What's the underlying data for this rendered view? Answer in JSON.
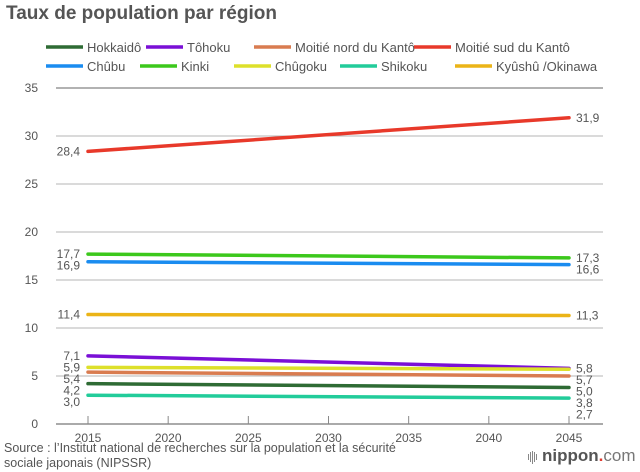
{
  "chart_data": {
    "type": "line",
    "title": "Taux de population par région",
    "xlabel": "",
    "ylabel": "",
    "x": [
      2015,
      2020,
      2025,
      2030,
      2035,
      2040,
      2045
    ],
    "x_tick_labels": [
      "2015",
      "2020",
      "2025",
      "2030",
      "2035",
      "2040",
      "2045"
    ],
    "y_ticks": [
      0,
      5,
      10,
      15,
      20,
      25,
      30,
      35
    ],
    "y_tick_labels": [
      "0",
      "5",
      "10",
      "15",
      "20",
      "25",
      "30",
      "35"
    ],
    "ylim": [
      0,
      35
    ],
    "grid": true,
    "legend_position": "top",
    "series": [
      {
        "name": "Hokkaidô",
        "color": "#2e6b34",
        "start": 4.2,
        "end": 3.8,
        "start_label": "4,2",
        "end_label": "3,8"
      },
      {
        "name": "Tôhoku",
        "color": "#7a0fd6",
        "start": 7.1,
        "end": 5.8,
        "start_label": "7,1",
        "end_label": "5,8"
      },
      {
        "name": "Moitié nord du Kantô",
        "color": "#d97c50",
        "start": 5.4,
        "end": 5.0,
        "start_label": "5,4",
        "end_label": "5,0"
      },
      {
        "name": "Moitié sud du Kantô",
        "color": "#e8392a",
        "start": 28.4,
        "end": 31.9,
        "start_label": "28,4",
        "end_label": "31,9"
      },
      {
        "name": "Chûbu",
        "color": "#1a8cf0",
        "start": 16.9,
        "end": 16.6,
        "start_label": "16,9",
        "end_label": "16,6"
      },
      {
        "name": "Kinki",
        "color": "#3cc81c",
        "start": 17.7,
        "end": 17.3,
        "start_label": "17,7",
        "end_label": "17,3"
      },
      {
        "name": "Chûgoku",
        "color": "#dde02a",
        "start": 5.9,
        "end": 5.7,
        "start_label": "5,9",
        "end_label": "5,7"
      },
      {
        "name": "Shikoku",
        "color": "#22cc9a",
        "start": 3.0,
        "end": 2.7,
        "start_label": "3,0",
        "end_label": "2,7"
      },
      {
        "name": "Kyûshû /Okinawa",
        "color": "#ebb417",
        "start": 11.4,
        "end": 11.3,
        "start_label": "11,4",
        "end_label": "11,3"
      }
    ]
  },
  "footer": {
    "source_line1": "Source : l’Institut national de recherches sur la population et la sécurité",
    "source_line2": "sociale japonais (NIPSSR)",
    "logo_nippon": "nippon",
    "logo_dot": ".",
    "logo_com": "com"
  }
}
